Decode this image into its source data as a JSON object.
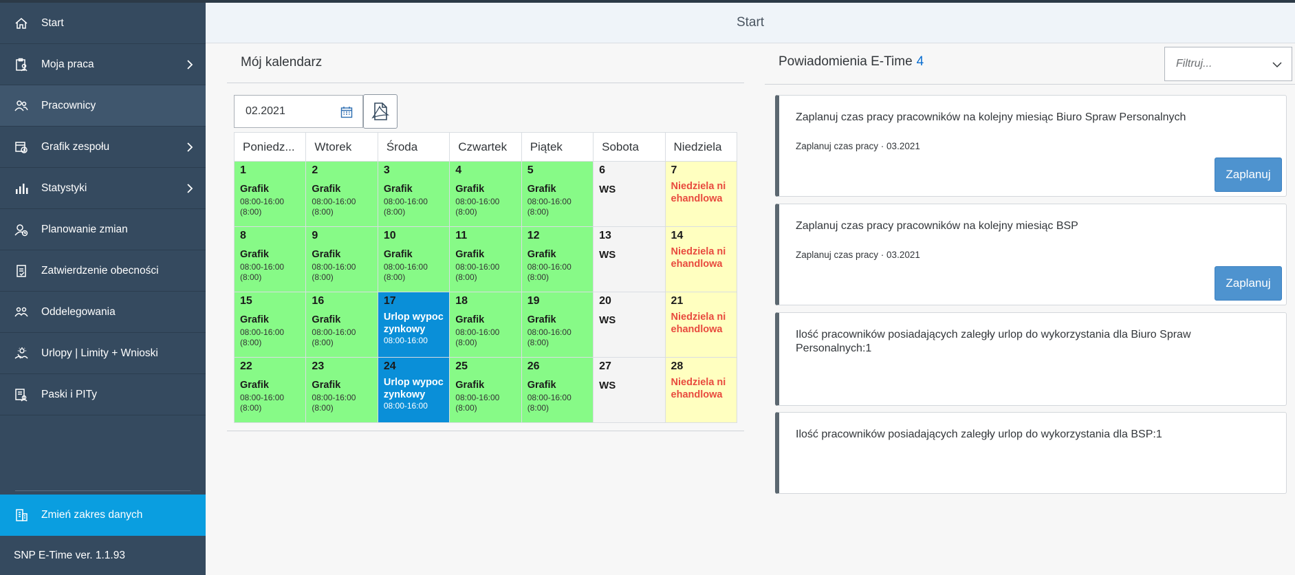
{
  "header": {
    "title": "Start"
  },
  "sidebar": {
    "items": [
      {
        "label": "Start",
        "icon": "home-icon",
        "chevron": false,
        "active": false
      },
      {
        "label": "Moja praca",
        "icon": "clipboard-user-icon",
        "chevron": true,
        "active": false
      },
      {
        "label": "Pracownicy",
        "icon": "employees-icon",
        "chevron": false,
        "active": true
      },
      {
        "label": "Grafik zespołu",
        "icon": "team-schedule-icon",
        "chevron": true,
        "active": false
      },
      {
        "label": "Statystyki",
        "icon": "bar-chart-icon",
        "chevron": true,
        "active": false
      },
      {
        "label": "Planowanie zmian",
        "icon": "shift-planning-icon",
        "chevron": false,
        "active": false
      },
      {
        "label": "Zatwierdzenie obecności",
        "icon": "attendance-approval-icon",
        "chevron": false,
        "active": false
      },
      {
        "label": "Oddelegowania",
        "icon": "delegation-icon",
        "chevron": false,
        "active": false
      },
      {
        "label": "Urlopy | Limity + Wnioski",
        "icon": "vacation-icon",
        "chevron": false,
        "active": false
      },
      {
        "label": "Paski i PITy",
        "icon": "payslip-icon",
        "chevron": false,
        "active": false
      }
    ],
    "change_range": "Zmień zakres danych",
    "version": "SNP E-Time ver. 1.1.93"
  },
  "calendar": {
    "title": "Mój kalendarz",
    "date_value": "02.2021",
    "weekdays": [
      "Poniedz...",
      "Wtorek",
      "Środa",
      "Czwartek",
      "Piątek",
      "Sobota",
      "Niedziela"
    ],
    "weeks": [
      [
        {
          "day": "1",
          "type": "work",
          "title": "Grafik",
          "time": "08:00-16:00",
          "hours": "(8:00)"
        },
        {
          "day": "2",
          "type": "work",
          "title": "Grafik",
          "time": "08:00-16:00",
          "hours": "(8:00)"
        },
        {
          "day": "3",
          "type": "work",
          "title": "Grafik",
          "time": "08:00-16:00",
          "hours": "(8:00)"
        },
        {
          "day": "4",
          "type": "work",
          "title": "Grafik",
          "time": "08:00-16:00",
          "hours": "(8:00)"
        },
        {
          "day": "5",
          "type": "work",
          "title": "Grafik",
          "time": "08:00-16:00",
          "hours": "(8:00)"
        },
        {
          "day": "6",
          "type": "free",
          "title": "WS"
        },
        {
          "day": "7",
          "type": "sunday",
          "title": "Niedziela niehandlowa"
        }
      ],
      [
        {
          "day": "8",
          "type": "work",
          "title": "Grafik",
          "time": "08:00-16:00",
          "hours": "(8:00)"
        },
        {
          "day": "9",
          "type": "work",
          "title": "Grafik",
          "time": "08:00-16:00",
          "hours": "(8:00)"
        },
        {
          "day": "10",
          "type": "work",
          "title": "Grafik",
          "time": "08:00-16:00",
          "hours": "(8:00)"
        },
        {
          "day": "11",
          "type": "work",
          "title": "Grafik",
          "time": "08:00-16:00",
          "hours": "(8:00)"
        },
        {
          "day": "12",
          "type": "work",
          "title": "Grafik",
          "time": "08:00-16:00",
          "hours": "(8:00)"
        },
        {
          "day": "13",
          "type": "free",
          "title": "WS"
        },
        {
          "day": "14",
          "type": "sunday",
          "title": "Niedziela niehandlowa"
        }
      ],
      [
        {
          "day": "15",
          "type": "work",
          "title": "Grafik",
          "time": "08:00-16:00",
          "hours": "(8:00)"
        },
        {
          "day": "16",
          "type": "work",
          "title": "Grafik",
          "time": "08:00-16:00",
          "hours": "(8:00)"
        },
        {
          "day": "17",
          "type": "leave",
          "title": "Urlop wypoczynkowy",
          "time": "08:00-16:00"
        },
        {
          "day": "18",
          "type": "work",
          "title": "Grafik",
          "time": "08:00-16:00",
          "hours": "(8:00)"
        },
        {
          "day": "19",
          "type": "work",
          "title": "Grafik",
          "time": "08:00-16:00",
          "hours": "(8:00)"
        },
        {
          "day": "20",
          "type": "free",
          "title": "WS"
        },
        {
          "day": "21",
          "type": "sunday",
          "title": "Niedziela niehandlowa"
        }
      ],
      [
        {
          "day": "22",
          "type": "work",
          "title": "Grafik",
          "time": "08:00-16:00",
          "hours": "(8:00)"
        },
        {
          "day": "23",
          "type": "work",
          "title": "Grafik",
          "time": "08:00-16:00",
          "hours": "(8:00)"
        },
        {
          "day": "24",
          "type": "leave",
          "title": "Urlop wypoczynkowy",
          "time": "08:00-16:00"
        },
        {
          "day": "25",
          "type": "work",
          "title": "Grafik",
          "time": "08:00-16:00",
          "hours": "(8:00)"
        },
        {
          "day": "26",
          "type": "work",
          "title": "Grafik",
          "time": "08:00-16:00",
          "hours": "(8:00)"
        },
        {
          "day": "27",
          "type": "free",
          "title": "WS"
        },
        {
          "day": "28",
          "type": "sunday",
          "title": "Niedziela niehandlowa"
        }
      ]
    ]
  },
  "notifications": {
    "title": "Powiadomienia E-Time",
    "count": "4",
    "filter_placeholder": "Filtruj...",
    "cards": [
      {
        "text": "Zaplanuj czas pracy pracowników na kolejny miesiąc Biuro Spraw Personalnych",
        "sub": "Zaplanuj czas pracy · 03.2021",
        "button": "Zaplanuj"
      },
      {
        "text": "Zaplanuj czas pracy pracowników na kolejny miesiąc BSP",
        "sub": "Zaplanuj czas pracy · 03.2021",
        "button": "Zaplanuj"
      },
      {
        "text": "Ilość pracowników posiadających zaległy urlop do wykorzystania dla Biuro Spraw Personalnych:1",
        "sub": "",
        "button": ""
      },
      {
        "text": "Ilość pracowników posiadających zaległy urlop do wykorzystania dla BSP:1",
        "sub": "",
        "button": ""
      }
    ]
  },
  "colors": {
    "sidebar_bg": "#354a5f",
    "accent": "#0a9ee0",
    "work_day": "#87fa87",
    "leave_day": "#0a8fd8",
    "sunday_day": "#ffffc0",
    "sunday_text": "#e84a3e"
  }
}
